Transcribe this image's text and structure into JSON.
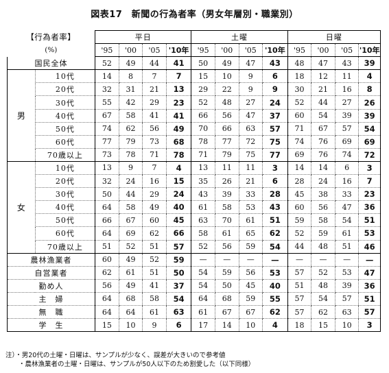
{
  "title": "図表17　新聞の行為者率（男女年層別・職業別）",
  "corner_label": "【行為者率】",
  "unit": "(%)",
  "day_groups": [
    "平日",
    "土曜",
    "日曜"
  ],
  "years": [
    "'95",
    "'00",
    "'05",
    "'10年"
  ],
  "rows": [
    {
      "group": "",
      "label": "国民全体",
      "v": [
        "52",
        "49",
        "44",
        "41",
        "50",
        "49",
        "47",
        "43",
        "48",
        "47",
        "43",
        "39"
      ]
    },
    {
      "group": "男",
      "label": "10代",
      "v": [
        "14",
        "8",
        "7",
        "7",
        "15",
        "10",
        "9",
        "6",
        "18",
        "12",
        "11",
        "4"
      ]
    },
    {
      "group": "男",
      "label": "20代",
      "v": [
        "32",
        "31",
        "21",
        "13",
        "29",
        "22",
        "9",
        "9",
        "30",
        "21",
        "16",
        "8"
      ]
    },
    {
      "group": "男",
      "label": "30代",
      "v": [
        "55",
        "42",
        "29",
        "23",
        "52",
        "48",
        "27",
        "24",
        "52",
        "44",
        "27",
        "26"
      ]
    },
    {
      "group": "男",
      "label": "40代",
      "v": [
        "67",
        "58",
        "41",
        "41",
        "66",
        "56",
        "47",
        "37",
        "60",
        "54",
        "39",
        "39"
      ]
    },
    {
      "group": "男",
      "label": "50代",
      "v": [
        "74",
        "62",
        "56",
        "49",
        "70",
        "66",
        "63",
        "57",
        "71",
        "67",
        "57",
        "54"
      ]
    },
    {
      "group": "男",
      "label": "60代",
      "v": [
        "77",
        "79",
        "73",
        "68",
        "78",
        "77",
        "72",
        "75",
        "74",
        "76",
        "69",
        "69"
      ]
    },
    {
      "group": "男",
      "label": "70歳以上",
      "v": [
        "73",
        "78",
        "71",
        "78",
        "71",
        "79",
        "75",
        "77",
        "69",
        "76",
        "74",
        "72"
      ]
    },
    {
      "group": "女",
      "label": "10代",
      "v": [
        "13",
        "9",
        "7",
        "4",
        "13",
        "11",
        "11",
        "3",
        "14",
        "14",
        "6",
        "3"
      ]
    },
    {
      "group": "女",
      "label": "20代",
      "v": [
        "32",
        "24",
        "16",
        "15",
        "35",
        "26",
        "21",
        "6",
        "28",
        "24",
        "16",
        "7"
      ]
    },
    {
      "group": "女",
      "label": "30代",
      "v": [
        "50",
        "44",
        "29",
        "24",
        "43",
        "39",
        "33",
        "28",
        "45",
        "38",
        "33",
        "23"
      ]
    },
    {
      "group": "女",
      "label": "40代",
      "v": [
        "64",
        "58",
        "49",
        "40",
        "61",
        "58",
        "53",
        "43",
        "60",
        "56",
        "47",
        "36"
      ]
    },
    {
      "group": "女",
      "label": "50代",
      "v": [
        "66",
        "67",
        "60",
        "45",
        "63",
        "70",
        "61",
        "51",
        "59",
        "58",
        "54",
        "51"
      ]
    },
    {
      "group": "女",
      "label": "60代",
      "v": [
        "64",
        "69",
        "62",
        "66",
        "58",
        "61",
        "65",
        "62",
        "52",
        "59",
        "61",
        "53"
      ]
    },
    {
      "group": "女",
      "label": "70歳以上",
      "v": [
        "51",
        "52",
        "51",
        "57",
        "52",
        "56",
        "59",
        "54",
        "44",
        "48",
        "51",
        "46"
      ]
    },
    {
      "group": "",
      "label": "農林漁業者",
      "v": [
        "60",
        "49",
        "52",
        "59",
        "—",
        "—",
        "—",
        "—",
        "—",
        "—",
        "—",
        "—"
      ]
    },
    {
      "group": "",
      "label": "自営業者",
      "v": [
        "62",
        "61",
        "51",
        "50",
        "54",
        "59",
        "56",
        "53",
        "57",
        "52",
        "53",
        "47"
      ]
    },
    {
      "group": "",
      "label": "勤め人",
      "v": [
        "56",
        "49",
        "41",
        "37",
        "54",
        "50",
        "45",
        "40",
        "51",
        "48",
        "39",
        "36"
      ]
    },
    {
      "group": "",
      "label": "主　婦",
      "v": [
        "64",
        "68",
        "58",
        "54",
        "64",
        "68",
        "59",
        "55",
        "57",
        "54",
        "57",
        "51"
      ]
    },
    {
      "group": "",
      "label": "無　職",
      "v": [
        "64",
        "64",
        "61",
        "63",
        "61",
        "67",
        "67",
        "62",
        "57",
        "62",
        "63",
        "57"
      ]
    },
    {
      "group": "",
      "label": "学　生",
      "v": [
        "15",
        "10",
        "9",
        "6",
        "17",
        "14",
        "10",
        "4",
        "18",
        "15",
        "10",
        "3"
      ]
    }
  ],
  "notes": [
    "注）・男20代の土曜・日曜は、サンプルが少なく、誤差が大きいので参考値",
    "　　・農林漁業者の土曜・日曜は、サンプルが50人以下のため割愛した（以下同様）"
  ]
}
